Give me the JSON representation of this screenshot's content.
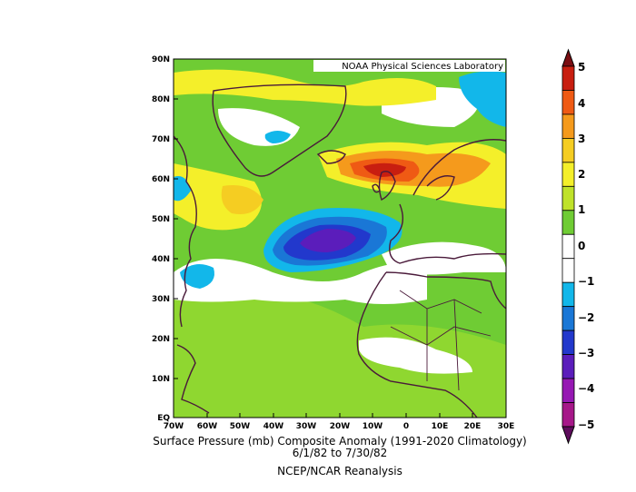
{
  "map": {
    "credit": "NOAA Physical Sciences Laboratory",
    "title_line1": "Surface Pressure (mb) Composite Anomaly (1991-2020 Climatology)",
    "title_line2": "6/1/82  to 7/30/82",
    "source": "NCEP/NCAR Reanalysis",
    "lat_labels": [
      "90N",
      "80N",
      "70N",
      "60N",
      "50N",
      "40N",
      "30N",
      "20N",
      "10N",
      "EQ"
    ],
    "lon_labels": [
      "70W",
      "60W",
      "50W",
      "40W",
      "30W",
      "20W",
      "10W",
      "0",
      "10E",
      "20E",
      "30E"
    ],
    "extent": {
      "lon_min": -70,
      "lon_max": 30,
      "lat_min": 0,
      "lat_max": 90
    }
  },
  "colorbar": {
    "ticks": [
      "5",
      "4",
      "3",
      "2",
      "1",
      "0",
      "−1",
      "−2",
      "−3",
      "−4",
      "−5"
    ],
    "colors": [
      "#7a0d12",
      "#c81e10",
      "#ef5a14",
      "#f59a1c",
      "#f5cd22",
      "#f4ef2a",
      "#bfe22a",
      "#6fcc34",
      "#ffffff",
      "#ffffff",
      "#12b7ea",
      "#1a77d6",
      "#2238cc",
      "#5b1dbb",
      "#9618b3",
      "#a61789",
      "#5e0c5c"
    ]
  }
}
